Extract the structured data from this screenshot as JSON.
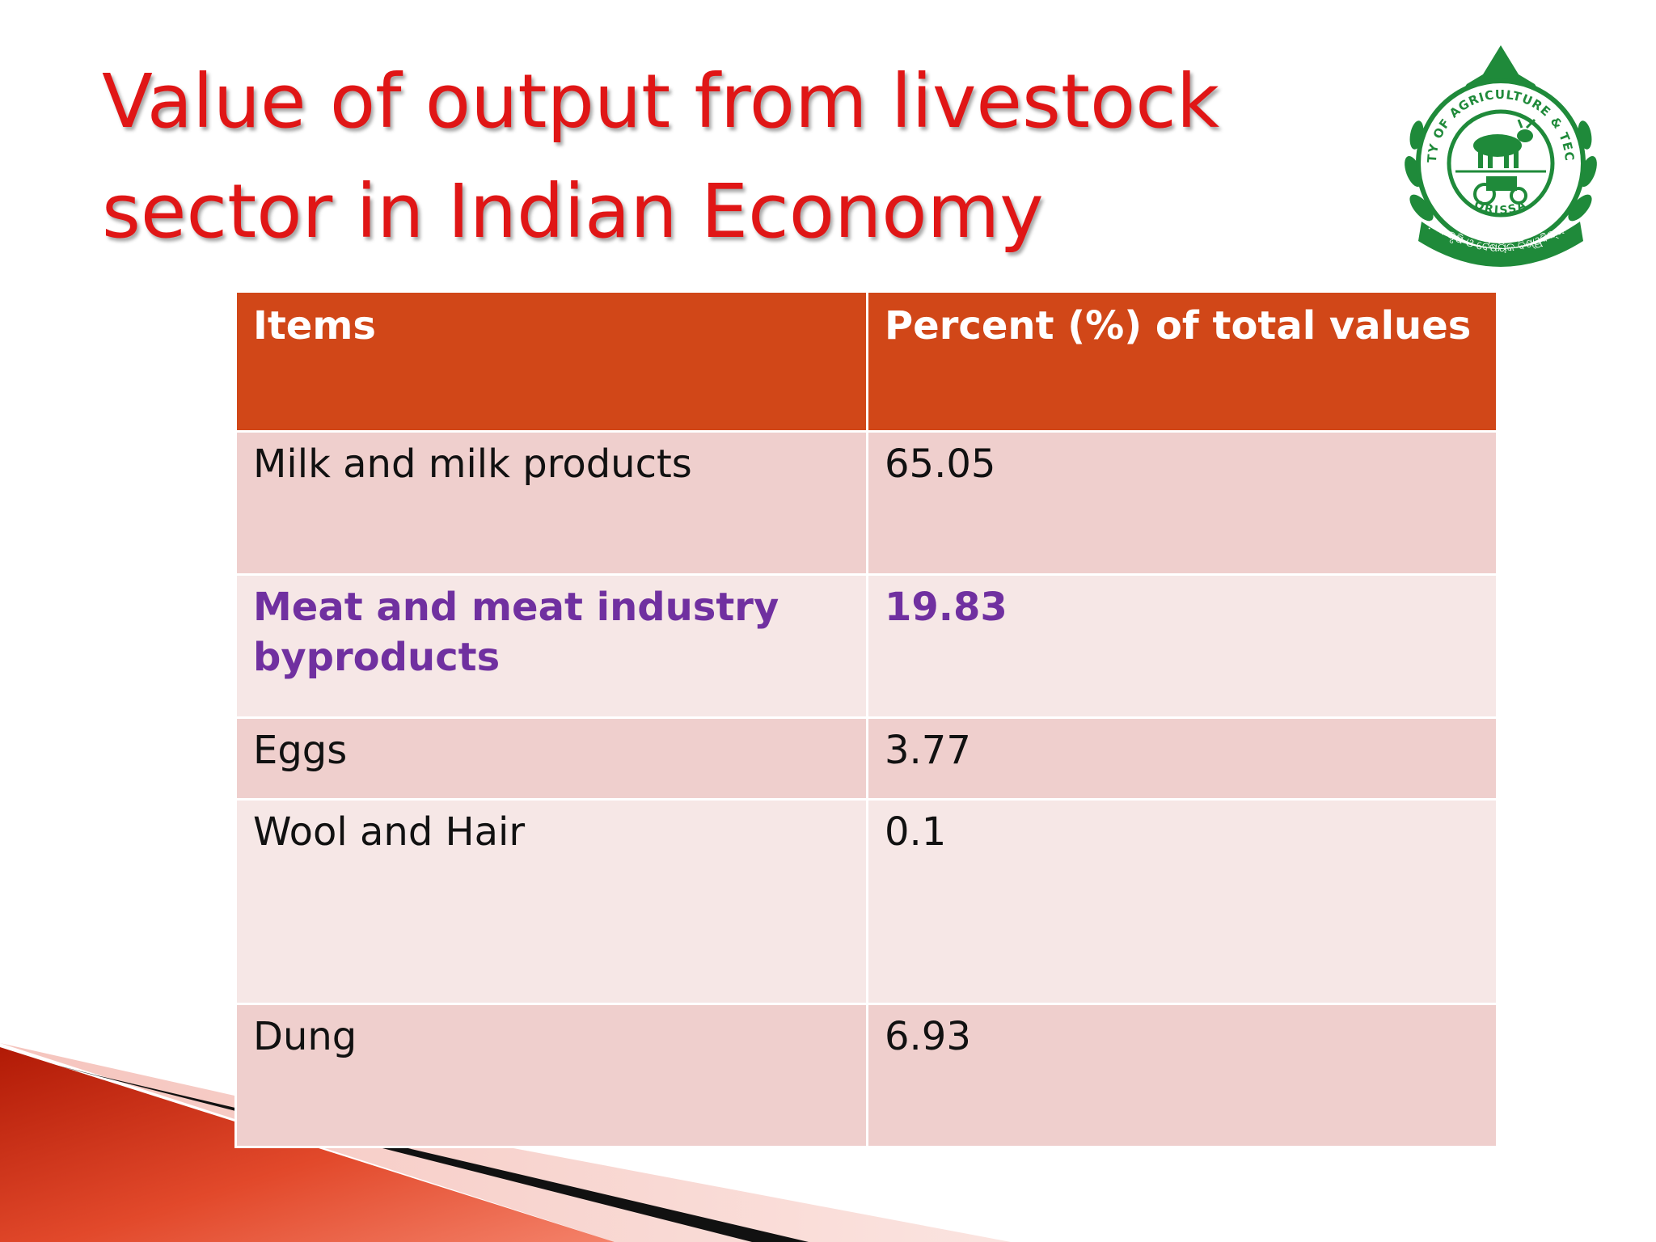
{
  "slide": {
    "title_line1": "Value of output from livestock",
    "title_line2": "sector in Indian Economy"
  },
  "logo": {
    "arc_text_top": "UNIVERSITY OF AGRICULTURE & TECHNOLOGY",
    "arc_text_bottom": "ORISSA",
    "script_text": "ଓଡ଼ିଶା କୃଷି ଓ ବୈଷୟିକ ବିଶ୍ୱବିଦ୍ୟାଳୟ",
    "color": "#1f8a3a"
  },
  "table": {
    "headers": [
      "Items",
      "Percent (%) of total values"
    ],
    "rows": [
      {
        "item": "Milk and milk products",
        "value": "65.05"
      },
      {
        "item": "Meat and meat industry byproducts",
        "value": "19.83"
      },
      {
        "item": "Eggs",
        "value": "3.77"
      },
      {
        "item": "Wool and Hair",
        "value": "0.1"
      },
      {
        "item": "Dung",
        "value": "6.93"
      }
    ],
    "header_color": "#d14718",
    "row_color_dark": "#efcfcd",
    "row_color_light": "#f6e7e6",
    "highlight_color": "#7030a0"
  },
  "theme": {
    "title_color": "#e01616",
    "accent_red": "#c0200c",
    "accent_dark": "#111111"
  }
}
